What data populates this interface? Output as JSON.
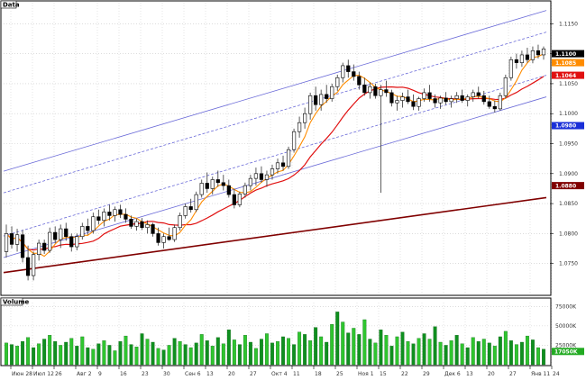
{
  "panels": {
    "price_title": "Data",
    "volume_title": "Volume"
  },
  "chart_data": [
    {
      "type": "candlestick",
      "title": "Data",
      "ylim": [
        1.07,
        1.1185
      ],
      "ytick_labels": [
        "1.1150",
        "1.1100",
        "1.1050",
        "1.1000",
        "1.0950",
        "1.0900",
        "1.0850",
        "1.0800",
        "1.0750"
      ],
      "ytick_values": [
        1.115,
        1.11,
        1.105,
        1.1,
        1.095,
        1.09,
        1.085,
        1.08,
        1.075
      ],
      "xtick_labels": [
        "Июн 28",
        "Июл 12",
        "26",
        "Авг 2",
        "9",
        "16",
        "23",
        "30",
        "Сен 6",
        "13",
        "20",
        "27",
        "Окт 4",
        "11",
        "18",
        "25",
        "Ноя 1",
        "15",
        "22",
        "29",
        "Дек 6",
        "13",
        "20",
        "27",
        "Янв 11",
        "24"
      ],
      "candles": [
        {
          "o": 1.077,
          "h": 1.0815,
          "l": 1.076,
          "c": 1.08
        },
        {
          "o": 1.08,
          "h": 1.0812,
          "l": 1.0775,
          "c": 1.0782
        },
        {
          "o": 1.0782,
          "h": 1.0808,
          "l": 1.077,
          "c": 1.0798
        },
        {
          "o": 1.0798,
          "h": 1.0806,
          "l": 1.0752,
          "c": 1.076
        },
        {
          "o": 1.076,
          "h": 1.078,
          "l": 1.0722,
          "c": 1.073
        },
        {
          "o": 1.073,
          "h": 1.077,
          "l": 1.0722,
          "c": 1.0765
        },
        {
          "o": 1.0765,
          "h": 1.079,
          "l": 1.0755,
          "c": 1.0784
        },
        {
          "o": 1.0784,
          "h": 1.079,
          "l": 1.0766,
          "c": 1.0772
        },
        {
          "o": 1.0772,
          "h": 1.081,
          "l": 1.0768,
          "c": 1.0802
        },
        {
          "o": 1.0802,
          "h": 1.0812,
          "l": 1.0784,
          "c": 1.079
        },
        {
          "o": 1.079,
          "h": 1.0815,
          "l": 1.0776,
          "c": 1.0808
        },
        {
          "o": 1.0808,
          "h": 1.0818,
          "l": 1.0788,
          "c": 1.0795
        },
        {
          "o": 1.0795,
          "h": 1.08,
          "l": 1.077,
          "c": 1.0778
        },
        {
          "o": 1.0778,
          "h": 1.08,
          "l": 1.0772,
          "c": 1.0795
        },
        {
          "o": 1.0795,
          "h": 1.0818,
          "l": 1.079,
          "c": 1.0812
        },
        {
          "o": 1.0812,
          "h": 1.0825,
          "l": 1.0798,
          "c": 1.0805
        },
        {
          "o": 1.0805,
          "h": 1.0835,
          "l": 1.08,
          "c": 1.0828
        },
        {
          "o": 1.0828,
          "h": 1.084,
          "l": 1.0815,
          "c": 1.0822
        },
        {
          "o": 1.0822,
          "h": 1.0842,
          "l": 1.0812,
          "c": 1.0836
        },
        {
          "o": 1.0836,
          "h": 1.0848,
          "l": 1.0822,
          "c": 1.083
        },
        {
          "o": 1.083,
          "h": 1.0845,
          "l": 1.082,
          "c": 1.084
        },
        {
          "o": 1.084,
          "h": 1.0848,
          "l": 1.0826,
          "c": 1.0832
        },
        {
          "o": 1.0832,
          "h": 1.0842,
          "l": 1.0818,
          "c": 1.0824
        },
        {
          "o": 1.0824,
          "h": 1.083,
          "l": 1.0808,
          "c": 1.0812
        },
        {
          "o": 1.0812,
          "h": 1.0825,
          "l": 1.0805,
          "c": 1.082
        },
        {
          "o": 1.082,
          "h": 1.0826,
          "l": 1.0806,
          "c": 1.081
        },
        {
          "o": 1.081,
          "h": 1.0822,
          "l": 1.08,
          "c": 1.0815
        },
        {
          "o": 1.0815,
          "h": 1.0818,
          "l": 1.0795,
          "c": 1.08
        },
        {
          "o": 1.08,
          "h": 1.081,
          "l": 1.078,
          "c": 1.0785
        },
        {
          "o": 1.0785,
          "h": 1.08,
          "l": 1.0775,
          "c": 1.0795
        },
        {
          "o": 1.0795,
          "h": 1.081,
          "l": 1.0788,
          "c": 1.079
        },
        {
          "o": 1.079,
          "h": 1.0815,
          "l": 1.0786,
          "c": 1.081
        },
        {
          "o": 1.081,
          "h": 1.0835,
          "l": 1.0805,
          "c": 1.083
        },
        {
          "o": 1.083,
          "h": 1.085,
          "l": 1.0825,
          "c": 1.0845
        },
        {
          "o": 1.0845,
          "h": 1.0858,
          "l": 1.0835,
          "c": 1.084
        },
        {
          "o": 1.084,
          "h": 1.087,
          "l": 1.0836,
          "c": 1.0865
        },
        {
          "o": 1.0865,
          "h": 1.089,
          "l": 1.086,
          "c": 1.0884
        },
        {
          "o": 1.0884,
          "h": 1.0902,
          "l": 1.0868,
          "c": 1.0875
        },
        {
          "o": 1.0875,
          "h": 1.0895,
          "l": 1.0865,
          "c": 1.089
        },
        {
          "o": 1.089,
          "h": 1.0905,
          "l": 1.0878,
          "c": 1.0885
        },
        {
          "o": 1.0885,
          "h": 1.0898,
          "l": 1.0872,
          "c": 1.088
        },
        {
          "o": 1.088,
          "h": 1.089,
          "l": 1.086,
          "c": 1.0865
        },
        {
          "o": 1.0865,
          "h": 1.0875,
          "l": 1.0842,
          "c": 1.0848
        },
        {
          "o": 1.0848,
          "h": 1.087,
          "l": 1.0844,
          "c": 1.0866
        },
        {
          "o": 1.0866,
          "h": 1.0885,
          "l": 1.086,
          "c": 1.088
        },
        {
          "o": 1.088,
          "h": 1.0898,
          "l": 1.0872,
          "c": 1.0892
        },
        {
          "o": 1.0892,
          "h": 1.091,
          "l": 1.088,
          "c": 1.09
        },
        {
          "o": 1.09,
          "h": 1.0912,
          "l": 1.0885,
          "c": 1.089
        },
        {
          "o": 1.089,
          "h": 1.0905,
          "l": 1.0878,
          "c": 1.0898
        },
        {
          "o": 1.0898,
          "h": 1.0915,
          "l": 1.089,
          "c": 1.0908
        },
        {
          "o": 1.0908,
          "h": 1.0925,
          "l": 1.09,
          "c": 1.0918
        },
        {
          "o": 1.0918,
          "h": 1.093,
          "l": 1.0905,
          "c": 1.0912
        },
        {
          "o": 1.0912,
          "h": 1.0945,
          "l": 1.0908,
          "c": 1.094
        },
        {
          "o": 1.094,
          "h": 1.0975,
          "l": 1.0935,
          "c": 1.097
        },
        {
          "o": 1.097,
          "h": 1.0995,
          "l": 1.096,
          "c": 1.0985
        },
        {
          "o": 1.0985,
          "h": 1.101,
          "l": 1.0975,
          "c": 1.1
        },
        {
          "o": 1.1,
          "h": 1.1035,
          "l": 1.099,
          "c": 1.103
        },
        {
          "o": 1.103,
          "h": 1.1045,
          "l": 1.1005,
          "c": 1.1015
        },
        {
          "o": 1.1015,
          "h": 1.104,
          "l": 1.1005,
          "c": 1.1032
        },
        {
          "o": 1.1032,
          "h": 1.1048,
          "l": 1.1018,
          "c": 1.1025
        },
        {
          "o": 1.1025,
          "h": 1.105,
          "l": 1.102,
          "c": 1.1045
        },
        {
          "o": 1.1045,
          "h": 1.1065,
          "l": 1.1038,
          "c": 1.106
        },
        {
          "o": 1.106,
          "h": 1.1085,
          "l": 1.1052,
          "c": 1.108
        },
        {
          "o": 1.108,
          "h": 1.109,
          "l": 1.106,
          "c": 1.107
        },
        {
          "o": 1.107,
          "h": 1.1082,
          "l": 1.1055,
          "c": 1.1062
        },
        {
          "o": 1.1062,
          "h": 1.107,
          "l": 1.104,
          "c": 1.1048
        },
        {
          "o": 1.1048,
          "h": 1.106,
          "l": 1.103,
          "c": 1.1035
        },
        {
          "o": 1.1035,
          "h": 1.1052,
          "l": 1.1025,
          "c": 1.1045
        },
        {
          "o": 1.1045,
          "h": 1.105,
          "l": 1.1025,
          "c": 1.103
        },
        {
          "o": 1.103,
          "h": 1.1048,
          "l": 1.0868,
          "c": 1.104
        },
        {
          "o": 1.104,
          "h": 1.1055,
          "l": 1.1028,
          "c": 1.1035
        },
        {
          "o": 1.1035,
          "h": 1.104,
          "l": 1.1012,
          "c": 1.1018
        },
        {
          "o": 1.1018,
          "h": 1.103,
          "l": 1.1005,
          "c": 1.1022
        },
        {
          "o": 1.1022,
          "h": 1.1035,
          "l": 1.101,
          "c": 1.1028
        },
        {
          "o": 1.1028,
          "h": 1.104,
          "l": 1.1016,
          "c": 1.102
        },
        {
          "o": 1.102,
          "h": 1.1032,
          "l": 1.1006,
          "c": 1.1012
        },
        {
          "o": 1.1012,
          "h": 1.1028,
          "l": 1.1005,
          "c": 1.1025
        },
        {
          "o": 1.1025,
          "h": 1.1042,
          "l": 1.102,
          "c": 1.1035
        },
        {
          "o": 1.1035,
          "h": 1.1048,
          "l": 1.102,
          "c": 1.1025
        },
        {
          "o": 1.1025,
          "h": 1.1032,
          "l": 1.101,
          "c": 1.1018
        },
        {
          "o": 1.1018,
          "h": 1.103,
          "l": 1.1008,
          "c": 1.1026
        },
        {
          "o": 1.1026,
          "h": 1.1036,
          "l": 1.1015,
          "c": 1.102
        },
        {
          "o": 1.102,
          "h": 1.103,
          "l": 1.101,
          "c": 1.1025
        },
        {
          "o": 1.1025,
          "h": 1.1036,
          "l": 1.1018,
          "c": 1.103
        },
        {
          "o": 1.103,
          "h": 1.104,
          "l": 1.1018,
          "c": 1.1022
        },
        {
          "o": 1.1022,
          "h": 1.1032,
          "l": 1.1012,
          "c": 1.1028
        },
        {
          "o": 1.1028,
          "h": 1.104,
          "l": 1.102,
          "c": 1.1035
        },
        {
          "o": 1.1035,
          "h": 1.1045,
          "l": 1.1025,
          "c": 1.103
        },
        {
          "o": 1.103,
          "h": 1.1038,
          "l": 1.1015,
          "c": 1.102
        },
        {
          "o": 1.102,
          "h": 1.103,
          "l": 1.1008,
          "c": 1.1012
        },
        {
          "o": 1.1012,
          "h": 1.1022,
          "l": 1.1002,
          "c": 1.1008
        },
        {
          "o": 1.1008,
          "h": 1.1035,
          "l": 1.1005,
          "c": 1.103
        },
        {
          "o": 1.103,
          "h": 1.1065,
          "l": 1.1025,
          "c": 1.106
        },
        {
          "o": 1.106,
          "h": 1.1095,
          "l": 1.1055,
          "c": 1.109
        },
        {
          "o": 1.109,
          "h": 1.11,
          "l": 1.1075,
          "c": 1.1085
        },
        {
          "o": 1.1085,
          "h": 1.1105,
          "l": 1.1078,
          "c": 1.1098
        },
        {
          "o": 1.1098,
          "h": 1.111,
          "l": 1.1085,
          "c": 1.109
        },
        {
          "o": 1.109,
          "h": 1.1112,
          "l": 1.1084,
          "c": 1.1105
        },
        {
          "o": 1.1105,
          "h": 1.1115,
          "l": 1.1092,
          "c": 1.1098
        },
        {
          "o": 1.1098,
          "h": 1.1112,
          "l": 1.109,
          "c": 1.1108
        }
      ],
      "moving_averages": [
        {
          "color": "#ff8c00",
          "period": 5
        },
        {
          "color": "#e01010",
          "period": 14
        },
        {
          "color": "#800000",
          "period": 200
        }
      ],
      "ma_long": [
        1.0735,
        1.086
      ],
      "channel": {
        "center": [
          1.0832,
          1.11
        ],
        "offsets": [
          -0.0072,
          -0.0036,
          0.0036,
          0.0072
        ],
        "styles": [
          "solid",
          "dashed",
          "dashed",
          "solid"
        ],
        "color": "#6a6ad8"
      },
      "price_tags": [
        {
          "text": "1.1100",
          "bg": "#000000",
          "fg": "#ffffff"
        },
        {
          "text": "1.1085",
          "bg": "#ff8c00",
          "fg": "#ffffff"
        },
        {
          "text": "1.1064",
          "bg": "#e01010",
          "fg": "#ffffff"
        },
        {
          "text": "1.0980",
          "bg": "#1a2fd8",
          "fg": "#ffffff"
        },
        {
          "text": "1.0880",
          "bg": "#800000",
          "fg": "#ffffff"
        }
      ],
      "tag_values": [
        1.11,
        1.1085,
        1.1064,
        1.098,
        1.088
      ]
    },
    {
      "type": "bar",
      "title": "Volume",
      "ylim": [
        0,
        80000
      ],
      "ytick_labels": [
        "75000K",
        "50000K",
        "25000K"
      ],
      "ytick_values": [
        75000,
        50000,
        25000
      ],
      "volume_tag": {
        "text": "17050K",
        "value": 17050,
        "bg": "#22aa22",
        "fg": "#ffffff"
      },
      "values": [
        28000,
        26000,
        24000,
        30000,
        35000,
        22000,
        27000,
        33000,
        38000,
        30000,
        25000,
        29000,
        34000,
        24000,
        36000,
        22000,
        20000,
        27000,
        31000,
        25000,
        18000,
        30000,
        37000,
        26000,
        23000,
        40000,
        33000,
        29000,
        21000,
        19000,
        25000,
        34000,
        30000,
        26000,
        22000,
        28000,
        39000,
        31000,
        24000,
        35000,
        27000,
        45000,
        32000,
        26000,
        38000,
        29000,
        21000,
        33000,
        40000,
        28000,
        30000,
        36000,
        34000,
        26000,
        42000,
        39000,
        31000,
        48000,
        36000,
        29000,
        52000,
        68000,
        55000,
        41000,
        47000,
        39000,
        58000,
        33000,
        28000,
        45000,
        38000,
        24000,
        36000,
        42000,
        30000,
        27000,
        34000,
        40000,
        33000,
        49000,
        29000,
        25000,
        31000,
        38000,
        27000,
        22000,
        35000,
        30000,
        33000,
        28000,
        24000,
        36000,
        43000,
        31000,
        26000,
        29000,
        37000,
        32000,
        22000,
        20000
      ]
    }
  ]
}
